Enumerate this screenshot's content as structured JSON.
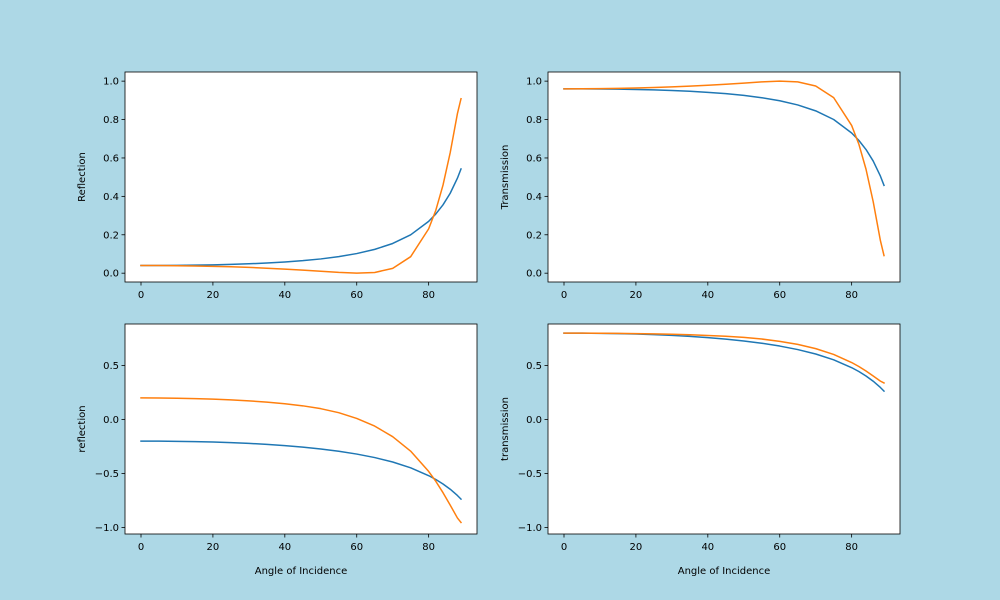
{
  "figure": {
    "background": "#add8e6"
  },
  "chart_data": [
    {
      "type": "line",
      "title": "",
      "xlabel": "",
      "ylabel": "Reflection",
      "xlim": [
        -4.45,
        93.45
      ],
      "ylim": [
        -0.0459,
        1.0476
      ],
      "xticks": [
        0,
        20,
        40,
        60,
        80
      ],
      "yticks": [
        0.0,
        0.2,
        0.4,
        0.6,
        0.8,
        1.0
      ],
      "ytick_decimals": 1,
      "grid": false,
      "legend": "none",
      "series": [
        {
          "color": "#1f77b4",
          "x": [
            0,
            5,
            10,
            15,
            20,
            25,
            30,
            35,
            40,
            45,
            50,
            55,
            60,
            65,
            70,
            75,
            80,
            82,
            84,
            86,
            88,
            89
          ],
          "y": [
            0.04,
            0.0402,
            0.0408,
            0.0418,
            0.0434,
            0.0457,
            0.0488,
            0.0528,
            0.0582,
            0.0651,
            0.0742,
            0.0862,
            0.1022,
            0.124,
            0.1547,
            0.1997,
            0.2699,
            0.3085,
            0.3561,
            0.4162,
            0.4945,
            0.5428
          ]
        },
        {
          "color": "#ff7f0e",
          "x": [
            0,
            5,
            10,
            15,
            20,
            25,
            30,
            35,
            40,
            45,
            50,
            55,
            60,
            65,
            70,
            75,
            80,
            82,
            84,
            86,
            88,
            89
          ],
          "y": [
            0.04,
            0.0397,
            0.0389,
            0.0376,
            0.0357,
            0.0332,
            0.03,
            0.026,
            0.0214,
            0.0161,
            0.0101,
            0.004,
            0.0001,
            0.0037,
            0.0252,
            0.0859,
            0.2307,
            0.3278,
            0.4588,
            0.6279,
            0.8303,
            0.9084
          ]
        }
      ]
    },
    {
      "type": "line",
      "title": "",
      "xlabel": "",
      "ylabel": "Transmission",
      "xlim": [
        -4.45,
        93.45
      ],
      "ylim": [
        -0.0459,
        1.0476
      ],
      "xticks": [
        0,
        20,
        40,
        60,
        80
      ],
      "yticks": [
        0.0,
        0.2,
        0.4,
        0.6,
        0.8,
        1.0
      ],
      "ytick_decimals": 1,
      "grid": false,
      "legend": "none",
      "series": [
        {
          "color": "#1f77b4",
          "x": [
            0,
            5,
            10,
            15,
            20,
            25,
            30,
            35,
            40,
            45,
            50,
            55,
            60,
            65,
            70,
            75,
            80,
            82,
            84,
            86,
            88,
            89
          ],
          "y": [
            0.96,
            0.9598,
            0.9592,
            0.9582,
            0.9566,
            0.9543,
            0.9512,
            0.9472,
            0.9418,
            0.9349,
            0.9258,
            0.9138,
            0.8978,
            0.876,
            0.8453,
            0.8003,
            0.7301,
            0.6915,
            0.6439,
            0.5838,
            0.5055,
            0.4572
          ]
        },
        {
          "color": "#ff7f0e",
          "x": [
            0,
            5,
            10,
            15,
            20,
            25,
            30,
            35,
            40,
            45,
            50,
            55,
            60,
            65,
            70,
            75,
            80,
            82,
            84,
            86,
            88,
            89
          ],
          "y": [
            0.96,
            0.9603,
            0.9611,
            0.9624,
            0.9643,
            0.9668,
            0.97,
            0.974,
            0.9786,
            0.9839,
            0.9899,
            0.996,
            0.9999,
            0.9963,
            0.9748,
            0.9141,
            0.7693,
            0.6722,
            0.5412,
            0.3721,
            0.1697,
            0.0916
          ]
        }
      ]
    },
    {
      "type": "line",
      "title": "",
      "xlabel": "Angle of Incidence",
      "ylabel": "reflection",
      "xlim": [
        -4.45,
        93.45
      ],
      "ylim": [
        -1.0599,
        0.8845
      ],
      "xticks": [
        0,
        20,
        40,
        60,
        80
      ],
      "yticks": [
        -1.0,
        -0.5,
        0.0,
        0.5
      ],
      "ytick_decimals": 1,
      "grid": false,
      "legend": "none",
      "series": [
        {
          "color": "#1f77b4",
          "x": [
            0,
            5,
            10,
            15,
            20,
            25,
            30,
            35,
            40,
            45,
            50,
            55,
            60,
            65,
            70,
            75,
            80,
            82,
            84,
            86,
            88,
            89
          ],
          "y": [
            -0.2,
            -0.2005,
            -0.202,
            -0.2045,
            -0.2083,
            -0.2137,
            -0.2209,
            -0.2298,
            -0.2413,
            -0.2554,
            -0.2724,
            -0.2936,
            -0.3197,
            -0.3521,
            -0.3933,
            -0.4469,
            -0.5195,
            -0.5554,
            -0.5968,
            -0.6452,
            -0.7032,
            -0.7368
          ]
        },
        {
          "color": "#ff7f0e",
          "x": [
            0,
            5,
            10,
            15,
            20,
            25,
            30,
            35,
            40,
            45,
            50,
            55,
            60,
            65,
            70,
            75,
            80,
            82,
            84,
            86,
            88,
            89
          ],
          "y": [
            0.2,
            0.1993,
            0.1972,
            0.1939,
            0.1889,
            0.1822,
            0.1732,
            0.1612,
            0.1463,
            0.1269,
            0.1005,
            0.0632,
            0.01,
            -0.061,
            -0.1587,
            -0.2931,
            -0.4803,
            -0.5725,
            -0.6774,
            -0.7924,
            -0.9111,
            -0.9531
          ]
        }
      ]
    },
    {
      "type": "line",
      "title": "",
      "xlabel": "Angle of Incidence",
      "ylabel": "transmission",
      "xlim": [
        -4.45,
        93.45
      ],
      "ylim": [
        -1.0599,
        0.8845
      ],
      "xticks": [
        0,
        20,
        40,
        60,
        80
      ],
      "yticks": [
        -1.0,
        -0.5,
        0.0,
        0.5
      ],
      "ytick_decimals": 1,
      "grid": false,
      "legend": "none",
      "series": [
        {
          "color": "#1f77b4",
          "x": [
            0,
            5,
            10,
            15,
            20,
            25,
            30,
            35,
            40,
            45,
            50,
            55,
            60,
            65,
            70,
            75,
            80,
            82,
            84,
            86,
            88,
            89
          ],
          "y": [
            0.8,
            0.7995,
            0.798,
            0.7955,
            0.7917,
            0.7863,
            0.7791,
            0.7702,
            0.7587,
            0.7446,
            0.7276,
            0.7064,
            0.6803,
            0.6479,
            0.6067,
            0.5531,
            0.4805,
            0.4446,
            0.4032,
            0.3548,
            0.2968,
            0.2632
          ]
        },
        {
          "color": "#ff7f0e",
          "x": [
            0,
            5,
            10,
            15,
            20,
            25,
            30,
            35,
            40,
            45,
            50,
            55,
            60,
            65,
            70,
            75,
            80,
            82,
            84,
            86,
            88,
            89
          ],
          "y": [
            0.8,
            0.7997,
            0.7989,
            0.7975,
            0.7955,
            0.7929,
            0.7893,
            0.7845,
            0.7785,
            0.7708,
            0.7602,
            0.7453,
            0.724,
            0.6956,
            0.6565,
            0.6028,
            0.5279,
            0.491,
            0.449,
            0.403,
            0.3556,
            0.3388
          ]
        }
      ]
    }
  ]
}
